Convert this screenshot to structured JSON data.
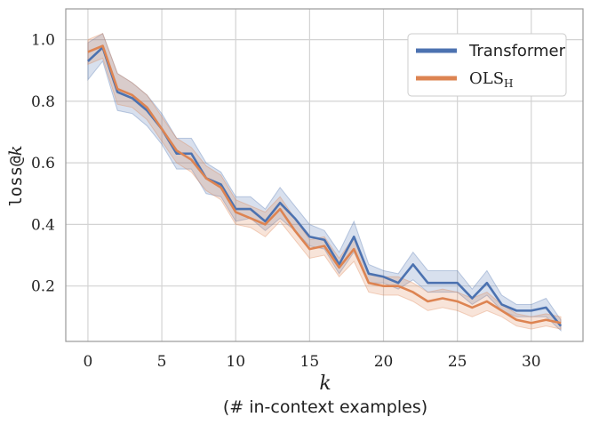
{
  "chart_data": {
    "type": "line",
    "title": "",
    "xlabel": "k",
    "xlabel_sub": "(# in-context examples)",
    "ylabel_prefix": "loss@",
    "ylabel_var": "k",
    "xlim": [
      -1.5,
      33.5
    ],
    "ylim": [
      0.02,
      1.1
    ],
    "x_ticks": [
      0,
      5,
      10,
      15,
      20,
      25,
      30
    ],
    "y_ticks": [
      0.2,
      0.4,
      0.6,
      0.8,
      1.0
    ],
    "y_tick_labels": [
      "0.2",
      "0.4",
      "0.6",
      "0.8",
      "1.0"
    ],
    "grid": true,
    "legend_position": "top-right",
    "x": [
      0,
      1,
      2,
      3,
      4,
      5,
      6,
      7,
      8,
      9,
      10,
      11,
      12,
      13,
      14,
      15,
      16,
      17,
      18,
      19,
      20,
      21,
      22,
      23,
      24,
      25,
      26,
      27,
      28,
      29,
      30,
      31,
      32
    ],
    "series": [
      {
        "name": "Transformer",
        "color": "#4c72b0",
        "values": [
          0.93,
          0.975,
          0.83,
          0.81,
          0.77,
          0.71,
          0.63,
          0.63,
          0.55,
          0.53,
          0.45,
          0.45,
          0.41,
          0.47,
          0.42,
          0.36,
          0.35,
          0.27,
          0.36,
          0.24,
          0.23,
          0.21,
          0.27,
          0.21,
          0.21,
          0.21,
          0.16,
          0.21,
          0.14,
          0.12,
          0.12,
          0.13,
          0.07
        ],
        "lower": [
          0.87,
          0.93,
          0.77,
          0.76,
          0.72,
          0.66,
          0.58,
          0.58,
          0.5,
          0.49,
          0.41,
          0.42,
          0.38,
          0.42,
          0.38,
          0.33,
          0.32,
          0.24,
          0.31,
          0.21,
          0.21,
          0.19,
          0.22,
          0.18,
          0.18,
          0.18,
          0.14,
          0.17,
          0.12,
          0.1,
          0.1,
          0.1,
          0.055
        ],
        "upper": [
          0.99,
          1.02,
          0.89,
          0.86,
          0.82,
          0.76,
          0.68,
          0.68,
          0.6,
          0.57,
          0.49,
          0.49,
          0.45,
          0.52,
          0.46,
          0.4,
          0.38,
          0.31,
          0.41,
          0.27,
          0.25,
          0.24,
          0.31,
          0.25,
          0.25,
          0.25,
          0.19,
          0.25,
          0.17,
          0.14,
          0.14,
          0.16,
          0.09
        ]
      },
      {
        "name": "OLS",
        "name_sub": "H",
        "color": "#dd8452",
        "values": [
          0.96,
          0.98,
          0.84,
          0.82,
          0.78,
          0.71,
          0.64,
          0.61,
          0.55,
          0.52,
          0.44,
          0.42,
          0.4,
          0.45,
          0.38,
          0.32,
          0.33,
          0.26,
          0.32,
          0.21,
          0.2,
          0.2,
          0.18,
          0.15,
          0.16,
          0.15,
          0.13,
          0.15,
          0.12,
          0.09,
          0.08,
          0.09,
          0.08
        ],
        "lower": [
          0.92,
          0.94,
          0.79,
          0.78,
          0.74,
          0.67,
          0.6,
          0.57,
          0.51,
          0.48,
          0.4,
          0.39,
          0.36,
          0.41,
          0.35,
          0.29,
          0.3,
          0.23,
          0.28,
          0.18,
          0.17,
          0.17,
          0.15,
          0.12,
          0.13,
          0.12,
          0.1,
          0.12,
          0.1,
          0.07,
          0.06,
          0.07,
          0.06
        ],
        "upper": [
          1.0,
          1.02,
          0.89,
          0.86,
          0.82,
          0.75,
          0.68,
          0.65,
          0.59,
          0.56,
          0.48,
          0.46,
          0.44,
          0.49,
          0.42,
          0.35,
          0.36,
          0.29,
          0.36,
          0.24,
          0.23,
          0.23,
          0.21,
          0.18,
          0.19,
          0.18,
          0.16,
          0.18,
          0.14,
          0.11,
          0.1,
          0.11,
          0.1
        ]
      }
    ]
  }
}
